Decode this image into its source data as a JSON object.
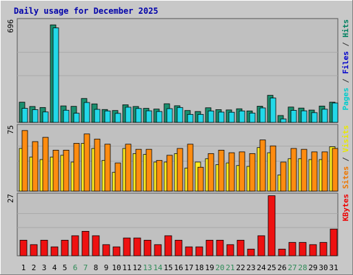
{
  "chart_data": {
    "type": "bar",
    "title": "Daily usage for December 2025",
    "days": [
      "1",
      "2",
      "3",
      "4",
      "5",
      "6",
      "7",
      "8",
      "9",
      "10",
      "11",
      "12",
      "13",
      "14",
      "15",
      "16",
      "17",
      "18",
      "19",
      "20",
      "21",
      "22",
      "23",
      "24",
      "25",
      "26",
      "27",
      "28",
      "29",
      "30",
      "31"
    ],
    "weekend_days": [
      "6",
      "7",
      "13",
      "14",
      "20",
      "21",
      "27",
      "28"
    ],
    "panels": [
      {
        "name": "hits-files",
        "ymax_label": "696",
        "ymax": 696,
        "right_label": [
          {
            "text": "Pages",
            "color": "#00cccc"
          },
          {
            "text": " / ",
            "color": "#333333"
          },
          {
            "text": "Files",
            "color": "#0000cc"
          },
          {
            "text": " / ",
            "color": "#333333"
          },
          {
            "text": "Hits",
            "color": "#008060"
          }
        ],
        "series": [
          {
            "name": "Hits",
            "color": "#1a8f6f",
            "values": [
              141,
              111,
              104,
              681,
              115,
              112,
              167,
              129,
              90,
              83,
              123,
              111,
              98,
              93,
              130,
              116,
              83,
              76,
              102,
              89,
              87,
              95,
              80,
              113,
              189,
              48,
              107,
              100,
              86,
              114,
              141
            ]
          },
          {
            "name": "Files",
            "color": "#22d8e8",
            "values": [
              98,
              89,
              73,
              660,
              85,
              64,
              139,
              91,
              80,
              63,
              106,
              97,
              81,
              76,
              96,
              104,
              56,
              56,
              80,
              72,
              71,
              80,
              65,
              101,
              170,
              24,
              84,
              81,
              68,
              92,
              135
            ]
          }
        ]
      },
      {
        "name": "visits-sites",
        "ymax_label": "75",
        "ymax": 75,
        "right_label": [
          {
            "text": "Sites",
            "color": "#ee7700"
          },
          {
            "text": " / ",
            "color": "#333333"
          },
          {
            "text": "Visits",
            "color": "#e8e800"
          }
        ],
        "series": [
          {
            "name": "Visits",
            "color": "#ffee22",
            "values": [
              50,
              40,
              37,
              40,
              42,
              34,
              56,
              50,
              36,
              22,
              50,
              44,
              43,
              34,
              34,
              44,
              27,
              34,
              38,
              31,
              33,
              30,
              29,
              51,
              45,
              19,
              38,
              38,
              37,
              37,
              52
            ]
          },
          {
            "name": "Sites",
            "color": "#ff8c10",
            "values": [
              71,
              58,
              63,
              48,
              48,
              56,
              67,
              61,
              55,
              33,
              55,
              49,
              49,
              36,
              42,
              50,
              55,
              28,
              44,
              48,
              45,
              46,
              44,
              60,
              53,
              34,
              50,
              49,
              46,
              46,
              50
            ]
          }
        ]
      },
      {
        "name": "kbytes",
        "ymax_label": "27",
        "ymax": 27,
        "right_label": [
          {
            "text": "KBytes",
            "color": "#ee0000"
          }
        ],
        "series": [
          {
            "name": "KBytes",
            "color": "#ee1111",
            "values": [
              7,
              5,
              7,
              4,
              7,
              9,
              11,
              9,
              5,
              4,
              8,
              8,
              7,
              5,
              9,
              7,
              4,
              4,
              7,
              7,
              5,
              7,
              3,
              9,
              27,
              3,
              6,
              6,
              5,
              6,
              12
            ]
          }
        ]
      }
    ]
  }
}
